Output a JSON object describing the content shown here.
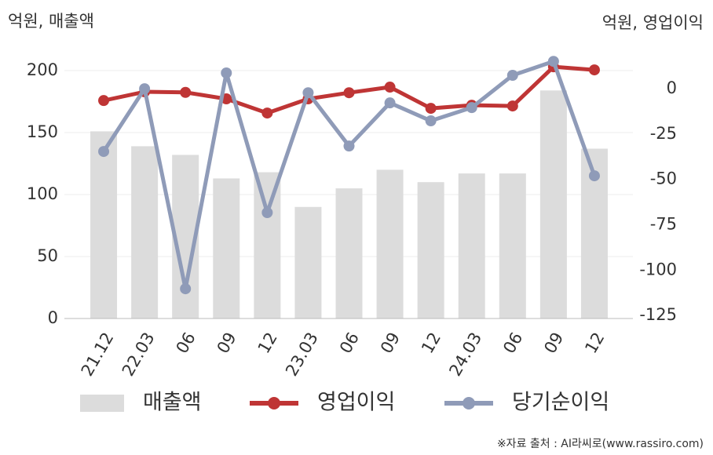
{
  "chart_data": {
    "type": "bar",
    "left_axis_label": "억원, 매출액",
    "right_axis_label": "억원, 영업이익",
    "source": "※자료 출처 : AI라씨로(www.rassiro.com)",
    "categories": [
      "21.12",
      "22.03",
      "06",
      "09",
      "12",
      "23.03",
      "06",
      "09",
      "12",
      "24.03",
      "06",
      "09",
      "12"
    ],
    "series": [
      {
        "name": "매출액",
        "type": "bar",
        "color": "#dcdcdc",
        "values": [
          151,
          139,
          132,
          113,
          118,
          90,
          105,
          120,
          110,
          117,
          117,
          184,
          137
        ]
      },
      {
        "name": "영업이익",
        "type": "line",
        "axis": "y2",
        "color": "#bf3535",
        "values": [
          -6.5,
          -1.7,
          -2,
          -5.6,
          -13.4,
          -5.6,
          -2.2,
          0.9,
          -10.8,
          -9.1,
          -9.5,
          12.1,
          10.4
        ]
      },
      {
        "name": "당기순이익",
        "type": "line",
        "axis": "y2",
        "color": "#8f9bb8",
        "values": [
          -34.6,
          0,
          -110.3,
          8.7,
          -68.3,
          -2.2,
          -31.6,
          -7.8,
          -17.7,
          -10.4,
          7.4,
          15.1,
          -48
        ]
      }
    ],
    "ylim": [
      0,
      200
    ],
    "yticks": [
      0,
      50,
      100,
      150,
      200
    ],
    "y2lim": [
      -126.7,
      10
    ],
    "y2ticks": [
      -125,
      -100,
      -75,
      -50,
      -25,
      0
    ],
    "grid": true
  }
}
